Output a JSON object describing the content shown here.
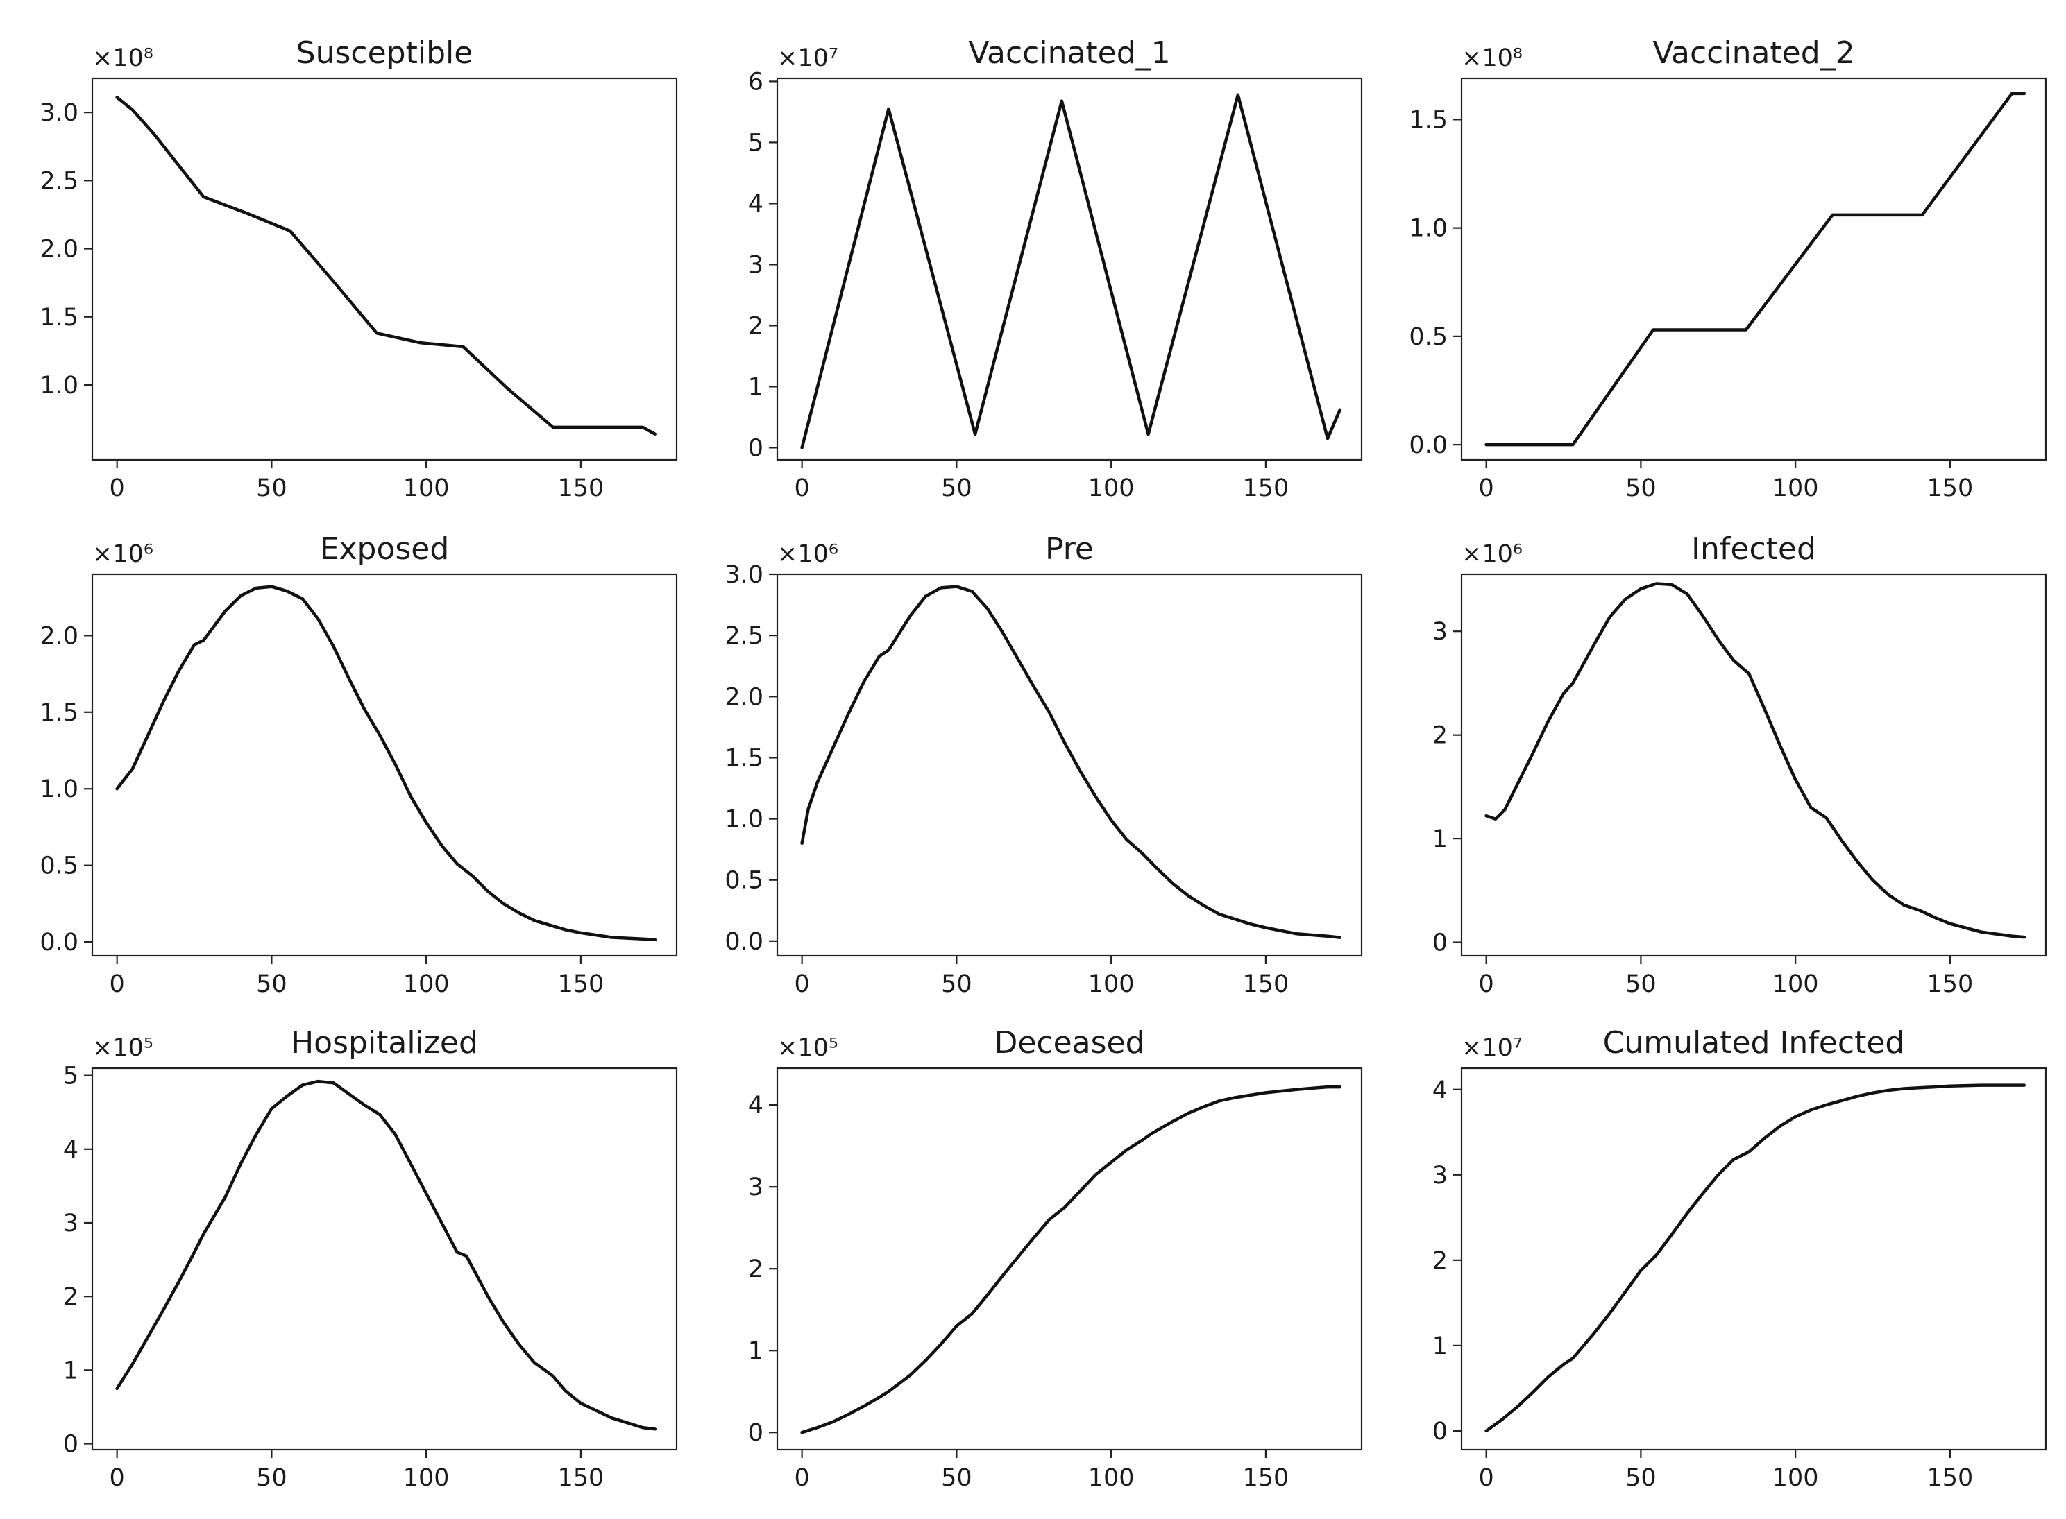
{
  "chart_data": [
    {
      "type": "line",
      "title": "Susceptible",
      "exponent_label": "×10⁸",
      "scale": 100000000,
      "xlim": [
        -8,
        181
      ],
      "ylim": [
        0.45,
        3.25
      ],
      "xticks": [
        0,
        50,
        100,
        150
      ],
      "xtick_labels": [
        "0",
        "50",
        "100",
        "150"
      ],
      "yticks": [
        1.0,
        1.5,
        2.0,
        2.5,
        3.0
      ],
      "ytick_labels": [
        "1.0",
        "1.5",
        "2.0",
        "2.5",
        "3.0"
      ],
      "x": [
        0,
        5,
        12,
        20,
        28,
        42,
        56,
        70,
        84,
        98,
        112,
        126,
        141,
        150,
        160,
        170,
        174
      ],
      "y": [
        3.11,
        3.02,
        2.84,
        2.61,
        2.38,
        2.26,
        2.13,
        1.76,
        1.38,
        1.31,
        1.28,
        0.98,
        0.69,
        0.69,
        0.69,
        0.69,
        0.64
      ]
    },
    {
      "type": "line",
      "title": "Vaccinated_1",
      "exponent_label": "×10⁷",
      "scale": 10000000,
      "xlim": [
        -8,
        181
      ],
      "ylim": [
        -0.2,
        6.05
      ],
      "xticks": [
        0,
        50,
        100,
        150
      ],
      "xtick_labels": [
        "0",
        "50",
        "100",
        "150"
      ],
      "yticks": [
        0,
        1,
        2,
        3,
        4,
        5,
        6
      ],
      "ytick_labels": [
        "0",
        "1",
        "2",
        "3",
        "4",
        "5",
        "6"
      ],
      "x": [
        0,
        28,
        56,
        84,
        112,
        141,
        170,
        174
      ],
      "y": [
        0.0,
        5.55,
        0.22,
        5.68,
        0.22,
        5.78,
        0.15,
        0.62
      ]
    },
    {
      "type": "line",
      "title": "Vaccinated_2",
      "exponent_label": "×10⁸",
      "scale": 100000000,
      "xlim": [
        -8,
        181
      ],
      "ylim": [
        -0.07,
        1.69
      ],
      "xticks": [
        0,
        50,
        100,
        150
      ],
      "xtick_labels": [
        "0",
        "50",
        "100",
        "150"
      ],
      "yticks": [
        0.0,
        0.5,
        1.0,
        1.5
      ],
      "ytick_labels": [
        "0.0",
        "0.5",
        "1.0",
        "1.5"
      ],
      "x": [
        0,
        28,
        54,
        84,
        112,
        141,
        170,
        174
      ],
      "y": [
        0.0,
        0.0,
        0.53,
        0.53,
        1.06,
        1.06,
        1.62,
        1.62
      ]
    },
    {
      "type": "line",
      "title": "Exposed",
      "exponent_label": "×10⁶",
      "scale": 1000000,
      "xlim": [
        -8,
        181
      ],
      "ylim": [
        -0.09,
        2.4
      ],
      "xticks": [
        0,
        50,
        100,
        150
      ],
      "xtick_labels": [
        "0",
        "50",
        "100",
        "150"
      ],
      "yticks": [
        0.0,
        0.5,
        1.0,
        1.5,
        2.0
      ],
      "ytick_labels": [
        "0.0",
        "0.5",
        "1.0",
        "1.5",
        "2.0"
      ],
      "x": [
        0,
        5,
        10,
        15,
        20,
        25,
        28,
        35,
        40,
        45,
        50,
        55,
        60,
        65,
        70,
        75,
        80,
        85,
        90,
        95,
        100,
        105,
        110,
        115,
        120,
        125,
        130,
        135,
        140,
        145,
        150,
        160,
        170,
        174
      ],
      "y": [
        1.0,
        1.13,
        1.35,
        1.57,
        1.77,
        1.94,
        1.97,
        2.16,
        2.26,
        2.31,
        2.32,
        2.29,
        2.24,
        2.11,
        1.93,
        1.72,
        1.52,
        1.35,
        1.16,
        0.95,
        0.78,
        0.63,
        0.51,
        0.43,
        0.33,
        0.25,
        0.19,
        0.14,
        0.11,
        0.08,
        0.06,
        0.03,
        0.02,
        0.015
      ]
    },
    {
      "type": "line",
      "title": "Pre",
      "exponent_label": "×10⁶",
      "scale": 1000000,
      "xlim": [
        -8,
        181
      ],
      "ylim": [
        -0.12,
        3.0
      ],
      "xticks": [
        0,
        50,
        100,
        150
      ],
      "xtick_labels": [
        "0",
        "50",
        "100",
        "150"
      ],
      "yticks": [
        0.0,
        0.5,
        1.0,
        1.5,
        2.0,
        2.5,
        3.0
      ],
      "ytick_labels": [
        "0.0",
        "0.5",
        "1.0",
        "1.5",
        "2.0",
        "2.5",
        "3.0"
      ],
      "x": [
        0,
        2,
        5,
        10,
        15,
        20,
        25,
        28,
        35,
        40,
        45,
        50,
        55,
        60,
        65,
        70,
        75,
        80,
        85,
        90,
        95,
        100,
        105,
        110,
        115,
        120,
        125,
        130,
        135,
        140,
        145,
        150,
        160,
        170,
        174
      ],
      "y": [
        0.8,
        1.08,
        1.3,
        1.58,
        1.86,
        2.12,
        2.33,
        2.38,
        2.66,
        2.82,
        2.89,
        2.9,
        2.86,
        2.72,
        2.52,
        2.3,
        2.08,
        1.87,
        1.62,
        1.39,
        1.18,
        0.99,
        0.83,
        0.72,
        0.59,
        0.47,
        0.37,
        0.29,
        0.22,
        0.18,
        0.14,
        0.11,
        0.06,
        0.04,
        0.03
      ]
    },
    {
      "type": "line",
      "title": "Infected",
      "exponent_label": "×10⁶",
      "scale": 1000000,
      "xlim": [
        -8,
        181
      ],
      "ylim": [
        -0.13,
        3.55
      ],
      "xticks": [
        0,
        50,
        100,
        150
      ],
      "xtick_labels": [
        "0",
        "50",
        "100",
        "150"
      ],
      "yticks": [
        0,
        1,
        2,
        3
      ],
      "ytick_labels": [
        "0",
        "1",
        "2",
        "3"
      ],
      "x": [
        0,
        3,
        6,
        10,
        15,
        20,
        25,
        28,
        35,
        40,
        45,
        50,
        55,
        60,
        65,
        70,
        75,
        80,
        85,
        90,
        95,
        100,
        105,
        110,
        115,
        120,
        125,
        130,
        135,
        140,
        145,
        150,
        160,
        170,
        174
      ],
      "y": [
        1.22,
        1.19,
        1.28,
        1.52,
        1.82,
        2.13,
        2.4,
        2.5,
        2.88,
        3.14,
        3.31,
        3.41,
        3.46,
        3.45,
        3.36,
        3.15,
        2.92,
        2.72,
        2.59,
        2.25,
        1.9,
        1.57,
        1.3,
        1.2,
        0.98,
        0.78,
        0.6,
        0.46,
        0.36,
        0.31,
        0.24,
        0.18,
        0.1,
        0.06,
        0.05
      ]
    },
    {
      "type": "line",
      "title": "Hospitalized",
      "exponent_label": "×10⁵",
      "scale": 100000,
      "xlim": [
        -8,
        181
      ],
      "ylim": [
        -0.08,
        5.1
      ],
      "xticks": [
        0,
        50,
        100,
        150
      ],
      "xtick_labels": [
        "0",
        "50",
        "100",
        "150"
      ],
      "yticks": [
        0,
        1,
        2,
        3,
        4,
        5
      ],
      "ytick_labels": [
        "0",
        "1",
        "2",
        "3",
        "4",
        "5"
      ],
      "x": [
        0,
        3,
        5,
        10,
        15,
        20,
        25,
        28,
        35,
        40,
        45,
        50,
        55,
        60,
        65,
        70,
        75,
        80,
        85,
        90,
        95,
        100,
        105,
        110,
        113,
        120,
        125,
        130,
        135,
        141,
        145,
        150,
        160,
        170,
        174
      ],
      "y": [
        0.75,
        0.95,
        1.08,
        1.45,
        1.82,
        2.2,
        2.6,
        2.85,
        3.35,
        3.8,
        4.2,
        4.55,
        4.72,
        4.87,
        4.92,
        4.9,
        4.75,
        4.6,
        4.47,
        4.2,
        3.8,
        3.4,
        3.0,
        2.6,
        2.55,
        2.0,
        1.65,
        1.35,
        1.1,
        0.92,
        0.72,
        0.55,
        0.35,
        0.22,
        0.2
      ]
    },
    {
      "type": "line",
      "title": "Deceased",
      "exponent_label": "×10⁵",
      "scale": 100000,
      "xlim": [
        -8,
        181
      ],
      "ylim": [
        -0.21,
        4.45
      ],
      "xticks": [
        0,
        50,
        100,
        150
      ],
      "xtick_labels": [
        "0",
        "50",
        "100",
        "150"
      ],
      "yticks": [
        0,
        1,
        2,
        3,
        4
      ],
      "ytick_labels": [
        "0",
        "1",
        "2",
        "3",
        "4"
      ],
      "x": [
        0,
        5,
        10,
        15,
        20,
        25,
        28,
        35,
        40,
        45,
        50,
        55,
        60,
        65,
        70,
        75,
        80,
        85,
        90,
        95,
        100,
        105,
        110,
        113,
        120,
        125,
        130,
        135,
        140,
        145,
        150,
        160,
        170,
        174
      ],
      "y": [
        0.0,
        0.06,
        0.13,
        0.22,
        0.32,
        0.43,
        0.5,
        0.7,
        0.88,
        1.08,
        1.3,
        1.45,
        1.68,
        1.92,
        2.15,
        2.38,
        2.6,
        2.75,
        2.95,
        3.15,
        3.3,
        3.45,
        3.57,
        3.65,
        3.8,
        3.9,
        3.98,
        4.05,
        4.09,
        4.12,
        4.15,
        4.19,
        4.22,
        4.22
      ]
    },
    {
      "type": "line",
      "title": "Cumulated Infected",
      "exponent_label": "×10⁷",
      "scale": 10000000,
      "xlim": [
        -8,
        181
      ],
      "ylim": [
        -0.22,
        4.25
      ],
      "xticks": [
        0,
        50,
        100,
        150
      ],
      "xtick_labels": [
        "0",
        "50",
        "100",
        "150"
      ],
      "yticks": [
        0,
        1,
        2,
        3,
        4
      ],
      "ytick_labels": [
        "0",
        "1",
        "2",
        "3",
        "4"
      ],
      "x": [
        0,
        5,
        10,
        15,
        20,
        25,
        28,
        35,
        40,
        45,
        50,
        55,
        60,
        65,
        70,
        75,
        80,
        85,
        90,
        95,
        100,
        105,
        110,
        113,
        120,
        125,
        130,
        135,
        140,
        145,
        150,
        160,
        170,
        174
      ],
      "y": [
        0.0,
        0.13,
        0.28,
        0.45,
        0.63,
        0.78,
        0.85,
        1.15,
        1.38,
        1.63,
        1.88,
        2.06,
        2.3,
        2.55,
        2.78,
        3.0,
        3.18,
        3.27,
        3.43,
        3.57,
        3.68,
        3.76,
        3.82,
        3.85,
        3.92,
        3.96,
        3.99,
        4.01,
        4.02,
        4.03,
        4.04,
        4.05,
        4.05,
        4.05
      ]
    }
  ]
}
